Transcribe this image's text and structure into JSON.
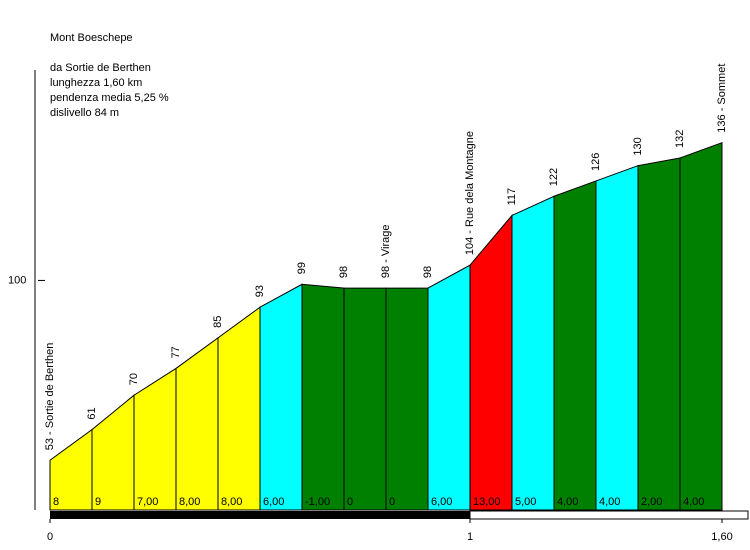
{
  "chart_data": {
    "type": "profile",
    "title": "Mont Boeschepe",
    "info": [
      "da Sortie de Berthen",
      "lunghezza 1,60 km",
      "pendenza media 5,25 %",
      "dislivello 84 m"
    ],
    "x": [
      0,
      0.1,
      0.2,
      0.3,
      0.4,
      0.5,
      0.6,
      0.7,
      0.8,
      0.9,
      1.0,
      1.1,
      1.2,
      1.3,
      1.4,
      1.5,
      1.6
    ],
    "values": [
      53,
      61,
      70,
      77,
      85,
      93,
      99,
      98,
      98,
      98,
      104,
      117,
      122,
      126,
      130,
      132,
      136
    ],
    "value_labels": [
      "53 - Sortie de Berthen",
      "61",
      "70",
      "77",
      "85",
      "93",
      "99",
      "98",
      "98 - Virage",
      "98",
      "104 - Rue dela Montagne",
      "117",
      "122",
      "126",
      "130",
      "132",
      "136 - Sommet"
    ],
    "gradients": {
      "values": [
        8,
        9,
        7,
        8,
        8,
        6,
        -1,
        0,
        0,
        6,
        13,
        5,
        4,
        4,
        2,
        4
      ],
      "value_labels": [
        "8",
        "9",
        "7,00",
        "8,00",
        "8,00",
        "6,00",
        "-1,00",
        "0",
        "0",
        "6,00",
        "13,00",
        "5,00",
        "4,00",
        "4,00",
        "2,00",
        "4,00"
      ],
      "colors": [
        "#ffff00",
        "#ffff00",
        "#ffff00",
        "#ffff00",
        "#ffff00",
        "#00ffff",
        "#008000",
        "#008000",
        "#008000",
        "#00ffff",
        "#ff0000",
        "#00ffff",
        "#008000",
        "#00ffff",
        "#008000",
        "#008000"
      ]
    },
    "xlim": [
      0,
      1.6
    ],
    "xticks": [
      0,
      1,
      {
        "value": 1.6,
        "label": "1,60"
      }
    ],
    "ylim": [
      40,
      155
    ],
    "yticks": [
      100
    ]
  }
}
